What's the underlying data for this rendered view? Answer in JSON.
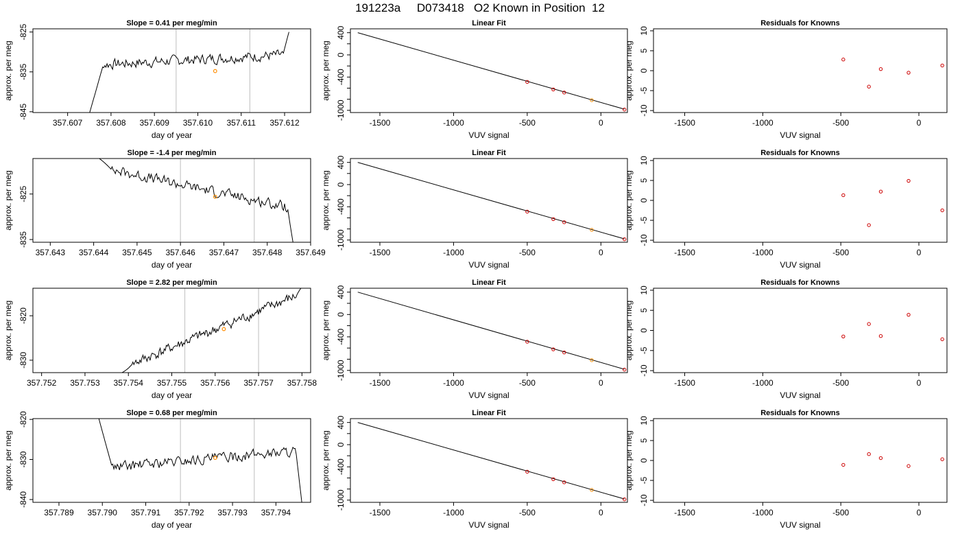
{
  "figure": {
    "title": "191223a     D073418   O2 Known in Position  12"
  },
  "chart_data": [
    {
      "type": "line",
      "title": "Slope =  0.41  per meg/min",
      "xlabel": "day of year",
      "ylabel": "approx. per meg",
      "xlim": [
        357.6062,
        357.6126
      ],
      "ylim": [
        -845.2,
        -824.2
      ],
      "x_ticks": [
        "357.607",
        "357.608",
        "357.609",
        "357.610",
        "357.611",
        "357.612"
      ],
      "y_ticks": [
        "-845",
        "-835",
        "-825"
      ],
      "vlines": [
        357.6095,
        357.6112
      ],
      "marker": {
        "x": 357.6104,
        "y": -834.8
      },
      "start_x": 357.6075,
      "end_x": 357.6121,
      "start_y": -845.5,
      "level_y": -832.0,
      "trend": 0.41,
      "end_y": -825.0
    },
    {
      "type": "line",
      "title": "Slope =  -1.4  per meg/min",
      "xlabel": "day of year",
      "ylabel": "approx. per meg",
      "xlim": [
        357.6426,
        357.649
      ],
      "ylim": [
        -835.6,
        -817.2
      ],
      "x_ticks": [
        "357.643",
        "357.644",
        "357.645",
        "357.646",
        "357.647",
        "357.648",
        "357.649"
      ],
      "y_ticks": [
        "-835",
        "-825"
      ],
      "vlines": [
        357.646,
        357.6477
      ],
      "marker": {
        "x": 357.6468,
        "y": -825.6
      },
      "start_x": 357.6441,
      "end_x": 357.6486,
      "start_y": -817.0,
      "level_y": -823.6,
      "trend": -1.4,
      "end_y": -836.0
    },
    {
      "type": "line",
      "title": "Slope =  2.82  per meg/min",
      "xlabel": "day of year",
      "ylabel": "approx. per meg",
      "xlim": [
        357.7518,
        357.7582
      ],
      "ylim": [
        -832.8,
        -813.8
      ],
      "x_ticks": [
        "357.752",
        "357.753",
        "357.754",
        "357.755",
        "357.756",
        "357.757",
        "357.758"
      ],
      "y_ticks": [
        "-830",
        "-820"
      ],
      "vlines": [
        357.7553,
        357.757
      ],
      "marker": {
        "x": 357.7562,
        "y": -823.0
      },
      "start_x": 357.7538,
      "end_x": 357.758,
      "start_y": -833.0,
      "level_y": -823.5,
      "trend": 2.82,
      "end_y": -813.5
    },
    {
      "type": "line",
      "title": "Slope =  0.68  per meg/min",
      "xlabel": "day of year",
      "ylabel": "approx. per meg",
      "xlim": [
        357.7884,
        357.7948
      ],
      "ylim": [
        -840.7,
        -819.8
      ],
      "x_ticks": [
        "357.789",
        "357.790",
        "357.791",
        "357.792",
        "357.793",
        "357.794"
      ],
      "y_ticks": [
        "-840",
        "-830",
        "-820"
      ],
      "vlines": [
        357.7918,
        357.7935
      ],
      "marker": {
        "x": 357.7926,
        "y": -829.6
      },
      "start_x": 357.7899,
      "end_x": 357.7946,
      "start_y": -819.0,
      "level_y": -830.0,
      "trend": 0.68,
      "end_y": -841.0
    },
    {
      "type": "scatter",
      "title": "Linear Fit",
      "xlabel": "VUV signal",
      "ylabel": "approx. per meg",
      "xlim": [
        -1700,
        180
      ],
      "ylim": [
        -1040,
        470
      ],
      "x_ticks": [
        -1500,
        -1000,
        -500,
        0
      ],
      "y_ticks": [
        400,
        0,
        -400,
        -1000
      ],
      "line": {
        "x": [
          -1650,
          160
        ],
        "y": [
          400,
          -980
        ]
      },
      "points": [
        {
          "x": -500,
          "y": -487,
          "color": "#cc0000"
        },
        {
          "x": -323,
          "y": -623,
          "color": "#cc0000"
        },
        {
          "x": -249,
          "y": -679,
          "color": "#cc0000"
        },
        {
          "x": -62,
          "y": -817,
          "color": "#ff8c00"
        },
        {
          "x": 160,
          "y": -986,
          "color": "#cc0000"
        }
      ]
    },
    {
      "type": "scatter",
      "title": "Linear Fit",
      "xlabel": "VUV signal",
      "ylabel": "approx. per meg",
      "xlim": [
        -1700,
        180
      ],
      "ylim": [
        -1040,
        470
      ],
      "x_ticks": [
        -1500,
        -1000,
        -500,
        0
      ],
      "y_ticks": [
        400,
        0,
        -400,
        -1000
      ],
      "line": {
        "x": [
          -1650,
          160
        ],
        "y": [
          400,
          -980
        ]
      },
      "points": [
        {
          "x": -500,
          "y": -487,
          "color": "#cc0000"
        },
        {
          "x": -323,
          "y": -623,
          "color": "#cc0000"
        },
        {
          "x": -249,
          "y": -679,
          "color": "#cc0000"
        },
        {
          "x": -62,
          "y": -817,
          "color": "#ff8c00"
        },
        {
          "x": 160,
          "y": -986,
          "color": "#cc0000"
        }
      ]
    },
    {
      "type": "scatter",
      "title": "Linear Fit",
      "xlabel": "VUV signal",
      "ylabel": "approx. per meg",
      "xlim": [
        -1700,
        180
      ],
      "ylim": [
        -1040,
        470
      ],
      "x_ticks": [
        -1500,
        -1000,
        -500,
        0
      ],
      "y_ticks": [
        400,
        0,
        -400,
        -1000
      ],
      "line": {
        "x": [
          -1650,
          160
        ],
        "y": [
          400,
          -980
        ]
      },
      "points": [
        {
          "x": -500,
          "y": -487,
          "color": "#cc0000"
        },
        {
          "x": -323,
          "y": -623,
          "color": "#cc0000"
        },
        {
          "x": -249,
          "y": -679,
          "color": "#cc0000"
        },
        {
          "x": -62,
          "y": -817,
          "color": "#ff8c00"
        },
        {
          "x": 160,
          "y": -986,
          "color": "#cc0000"
        }
      ]
    },
    {
      "type": "scatter",
      "title": "Linear Fit",
      "xlabel": "VUV signal",
      "ylabel": "approx. per meg",
      "xlim": [
        -1700,
        180
      ],
      "ylim": [
        -1040,
        470
      ],
      "x_ticks": [
        -1500,
        -1000,
        -500,
        0
      ],
      "y_ticks": [
        400,
        0,
        -400,
        -1000
      ],
      "line": {
        "x": [
          -1650,
          160
        ],
        "y": [
          400,
          -980
        ]
      },
      "points": [
        {
          "x": -500,
          "y": -487,
          "color": "#cc0000"
        },
        {
          "x": -323,
          "y": -623,
          "color": "#cc0000"
        },
        {
          "x": -249,
          "y": -679,
          "color": "#cc0000"
        },
        {
          "x": -62,
          "y": -817,
          "color": "#ff8c00"
        },
        {
          "x": 160,
          "y": -986,
          "color": "#cc0000"
        }
      ]
    },
    {
      "type": "scatter",
      "title": "Residuals for Knowns",
      "xlabel": "VUV signal",
      "ylabel": "approx. per meg",
      "xlim": [
        -1700,
        180
      ],
      "ylim": [
        -10.5,
        10.5
      ],
      "x_ticks": [
        -1500,
        -1000,
        -500,
        0
      ],
      "y_ticks": [
        10,
        5,
        0,
        -5,
        -10
      ],
      "points": [
        {
          "x": -484,
          "y": 2.8
        },
        {
          "x": -320,
          "y": -4.0
        },
        {
          "x": -244,
          "y": 0.4
        },
        {
          "x": -66,
          "y": -0.5
        },
        {
          "x": 150,
          "y": 1.3
        }
      ]
    },
    {
      "type": "scatter",
      "title": "Residuals for Knowns",
      "xlabel": "VUV signal",
      "ylabel": "approx. per meg",
      "xlim": [
        -1700,
        180
      ],
      "ylim": [
        -10.5,
        10.5
      ],
      "x_ticks": [
        -1500,
        -1000,
        -500,
        0
      ],
      "y_ticks": [
        10,
        5,
        0,
        -5,
        -10
      ],
      "points": [
        {
          "x": -484,
          "y": 1.3
        },
        {
          "x": -320,
          "y": -6.2
        },
        {
          "x": -244,
          "y": 2.2
        },
        {
          "x": -66,
          "y": 4.9
        },
        {
          "x": 150,
          "y": -2.5
        }
      ]
    },
    {
      "type": "scatter",
      "title": "Residuals for Knowns",
      "xlabel": "VUV signal",
      "ylabel": "approx. per meg",
      "xlim": [
        -1700,
        180
      ],
      "ylim": [
        -10.5,
        10.5
      ],
      "x_ticks": [
        -1500,
        -1000,
        -500,
        0
      ],
      "y_ticks": [
        10,
        5,
        0,
        -5,
        -10
      ],
      "points": [
        {
          "x": -484,
          "y": -1.5
        },
        {
          "x": -320,
          "y": 1.6
        },
        {
          "x": -244,
          "y": -1.4
        },
        {
          "x": -66,
          "y": 3.9
        },
        {
          "x": 150,
          "y": -2.2
        }
      ]
    },
    {
      "type": "scatter",
      "title": "Residuals for Knowns",
      "xlabel": "VUV signal",
      "ylabel": "approx. per meg",
      "xlim": [
        -1700,
        180
      ],
      "ylim": [
        -10.5,
        10.5
      ],
      "x_ticks": [
        -1500,
        -1000,
        -500,
        0
      ],
      "y_ticks": [
        10,
        5,
        0,
        -5,
        -10
      ],
      "points": [
        {
          "x": -484,
          "y": -1.1
        },
        {
          "x": -320,
          "y": 1.6
        },
        {
          "x": -244,
          "y": 0.6
        },
        {
          "x": -66,
          "y": -1.4
        },
        {
          "x": 150,
          "y": 0.3
        }
      ]
    }
  ]
}
